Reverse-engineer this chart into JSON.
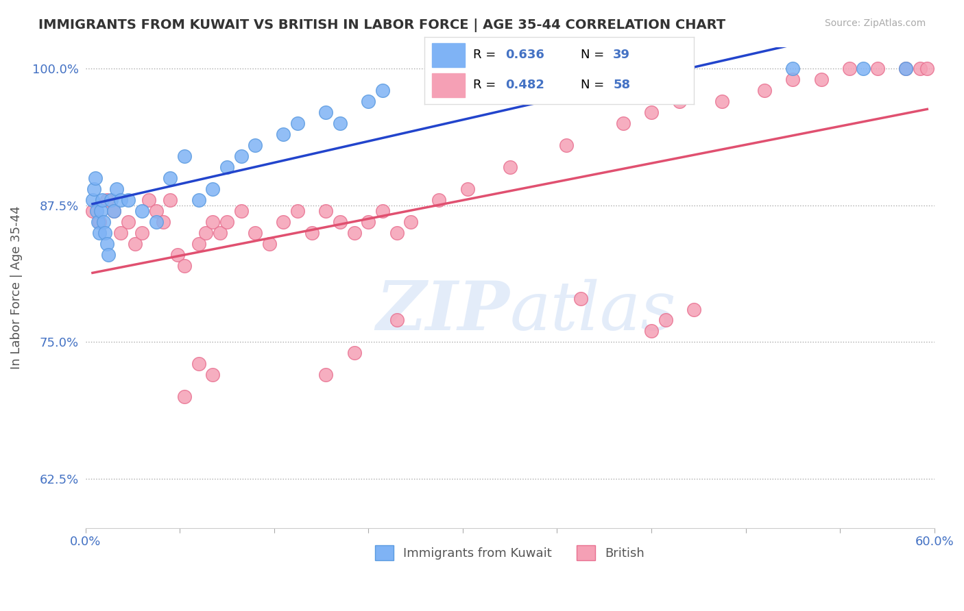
{
  "title": "IMMIGRANTS FROM KUWAIT VS BRITISH IN LABOR FORCE | AGE 35-44 CORRELATION CHART",
  "source": "Source: ZipAtlas.com",
  "xlabel": "",
  "ylabel": "In Labor Force | Age 35-44",
  "xmin": 0.0,
  "xmax": 0.6,
  "ymin": 0.58,
  "ymax": 1.02,
  "yticks": [
    0.625,
    0.75,
    0.875,
    1.0
  ],
  "ytick_labels": [
    "62.5%",
    "75.0%",
    "87.5%",
    "100.0%"
  ],
  "xtick_labels": [
    "0.0%",
    "",
    "",
    "",
    "",
    "",
    "",
    "",
    "",
    "60.0%"
  ],
  "title_color": "#333333",
  "source_color": "#aaaaaa",
  "axis_color": "#4472c4",
  "watermark_text": "ZIPatlas",
  "legend_r_kuwait": "R = 0.636",
  "legend_n_kuwait": "N = 39",
  "legend_r_british": "R = 0.482",
  "legend_n_british": "N = 58",
  "kuwait_color": "#7fb3f5",
  "british_color": "#f5a0b5",
  "kuwait_edge": "#5a9ae0",
  "british_edge": "#e87090",
  "kuwait_x": [
    0.005,
    0.006,
    0.007,
    0.008,
    0.009,
    0.01,
    0.011,
    0.012,
    0.013,
    0.014,
    0.015,
    0.016,
    0.018,
    0.02,
    0.022,
    0.025,
    0.03,
    0.04,
    0.05,
    0.06,
    0.07,
    0.08,
    0.09,
    0.1,
    0.11,
    0.12,
    0.14,
    0.15,
    0.17,
    0.18,
    0.2,
    0.21,
    0.25,
    0.3,
    0.38,
    0.42,
    0.5,
    0.55,
    0.58
  ],
  "kuwait_y": [
    0.88,
    0.89,
    0.9,
    0.87,
    0.86,
    0.85,
    0.87,
    0.88,
    0.86,
    0.85,
    0.84,
    0.83,
    0.88,
    0.87,
    0.89,
    0.88,
    0.88,
    0.87,
    0.86,
    0.9,
    0.92,
    0.88,
    0.89,
    0.91,
    0.92,
    0.93,
    0.94,
    0.95,
    0.96,
    0.95,
    0.97,
    0.98,
    0.99,
    0.99,
    1.0,
    1.0,
    1.0,
    1.0,
    1.0
  ],
  "british_x": [
    0.005,
    0.01,
    0.015,
    0.02,
    0.025,
    0.03,
    0.035,
    0.04,
    0.045,
    0.05,
    0.055,
    0.06,
    0.065,
    0.07,
    0.08,
    0.085,
    0.09,
    0.095,
    0.1,
    0.11,
    0.12,
    0.13,
    0.14,
    0.15,
    0.16,
    0.17,
    0.18,
    0.19,
    0.2,
    0.21,
    0.22,
    0.23,
    0.25,
    0.27,
    0.3,
    0.34,
    0.38,
    0.4,
    0.42,
    0.45,
    0.48,
    0.5,
    0.52,
    0.54,
    0.56,
    0.58,
    0.59,
    0.595,
    0.4,
    0.41,
    0.43,
    0.35,
    0.22,
    0.19,
    0.17,
    0.09,
    0.07,
    0.08
  ],
  "british_y": [
    0.87,
    0.86,
    0.88,
    0.87,
    0.85,
    0.86,
    0.84,
    0.85,
    0.88,
    0.87,
    0.86,
    0.88,
    0.83,
    0.82,
    0.84,
    0.85,
    0.86,
    0.85,
    0.86,
    0.87,
    0.85,
    0.84,
    0.86,
    0.87,
    0.85,
    0.87,
    0.86,
    0.85,
    0.86,
    0.87,
    0.85,
    0.86,
    0.88,
    0.89,
    0.91,
    0.93,
    0.95,
    0.96,
    0.97,
    0.97,
    0.98,
    0.99,
    0.99,
    1.0,
    1.0,
    1.0,
    1.0,
    1.0,
    0.76,
    0.77,
    0.78,
    0.79,
    0.77,
    0.74,
    0.72,
    0.72,
    0.7,
    0.73
  ]
}
